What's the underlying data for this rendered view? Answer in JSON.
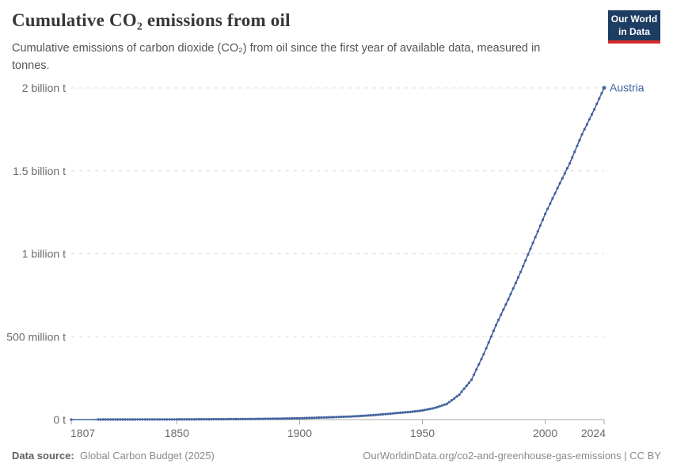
{
  "header": {
    "title": "Cumulative CO₂ emissions from oil",
    "subtitle": "Cumulative emissions of carbon dioxide (CO₂) from oil since the first year of available data, measured in tonnes.",
    "logo": {
      "line1": "Our World",
      "line2": "in Data",
      "bg_color": "#1d3d63",
      "stripe_color": "#d22c2c"
    }
  },
  "footer": {
    "source_label": "Data source:",
    "source_value": "Global Carbon Budget (2025)",
    "link": "OurWorldinData.org/co2-and-greenhouse-gas-emissions | CC BY"
  },
  "chart_data": {
    "type": "line",
    "title": "Cumulative CO₂ emissions from oil",
    "unit": "million tonnes of CO₂",
    "xlim": [
      1807,
      2024
    ],
    "ylim": [
      0,
      2000
    ],
    "grid": "horizontal-dashed",
    "legend_position": "end-of-line-label",
    "x_ticks": [
      1807,
      1850,
      1900,
      1950,
      2000,
      2024
    ],
    "y_ticks": [
      {
        "value": 0,
        "label": "0 t"
      },
      {
        "value": 500,
        "label": "500 million t"
      },
      {
        "value": 1000,
        "label": "1 billion t"
      },
      {
        "value": 1500,
        "label": "1.5 billion t"
      },
      {
        "value": 2000,
        "label": "2 billion t"
      }
    ],
    "series": [
      {
        "name": "Austria",
        "color": "#42639f",
        "markers_every_year_from": 1818,
        "points": [
          [
            1807,
            0
          ],
          [
            1818,
            0.3
          ],
          [
            1830,
            0.6
          ],
          [
            1840,
            0.9
          ],
          [
            1850,
            1.2
          ],
          [
            1860,
            1.8
          ],
          [
            1870,
            2.6
          ],
          [
            1880,
            3.6
          ],
          [
            1890,
            5.2
          ],
          [
            1900,
            8
          ],
          [
            1910,
            13
          ],
          [
            1920,
            18
          ],
          [
            1925,
            22
          ],
          [
            1930,
            27
          ],
          [
            1935,
            33
          ],
          [
            1940,
            40
          ],
          [
            1945,
            46
          ],
          [
            1950,
            55
          ],
          [
            1955,
            70
          ],
          [
            1960,
            95
          ],
          [
            1965,
            150
          ],
          [
            1970,
            240
          ],
          [
            1975,
            395
          ],
          [
            1980,
            570
          ],
          [
            1985,
            725
          ],
          [
            1990,
            890
          ],
          [
            1995,
            1065
          ],
          [
            2000,
            1240
          ],
          [
            2005,
            1395
          ],
          [
            2010,
            1545
          ],
          [
            2015,
            1720
          ],
          [
            2020,
            1870
          ],
          [
            2024,
            2000
          ]
        ]
      }
    ],
    "colors": {
      "gridline": "#e0e0e0",
      "axis": "#a8a8a8",
      "tick_label": "#6b6b6b"
    }
  }
}
